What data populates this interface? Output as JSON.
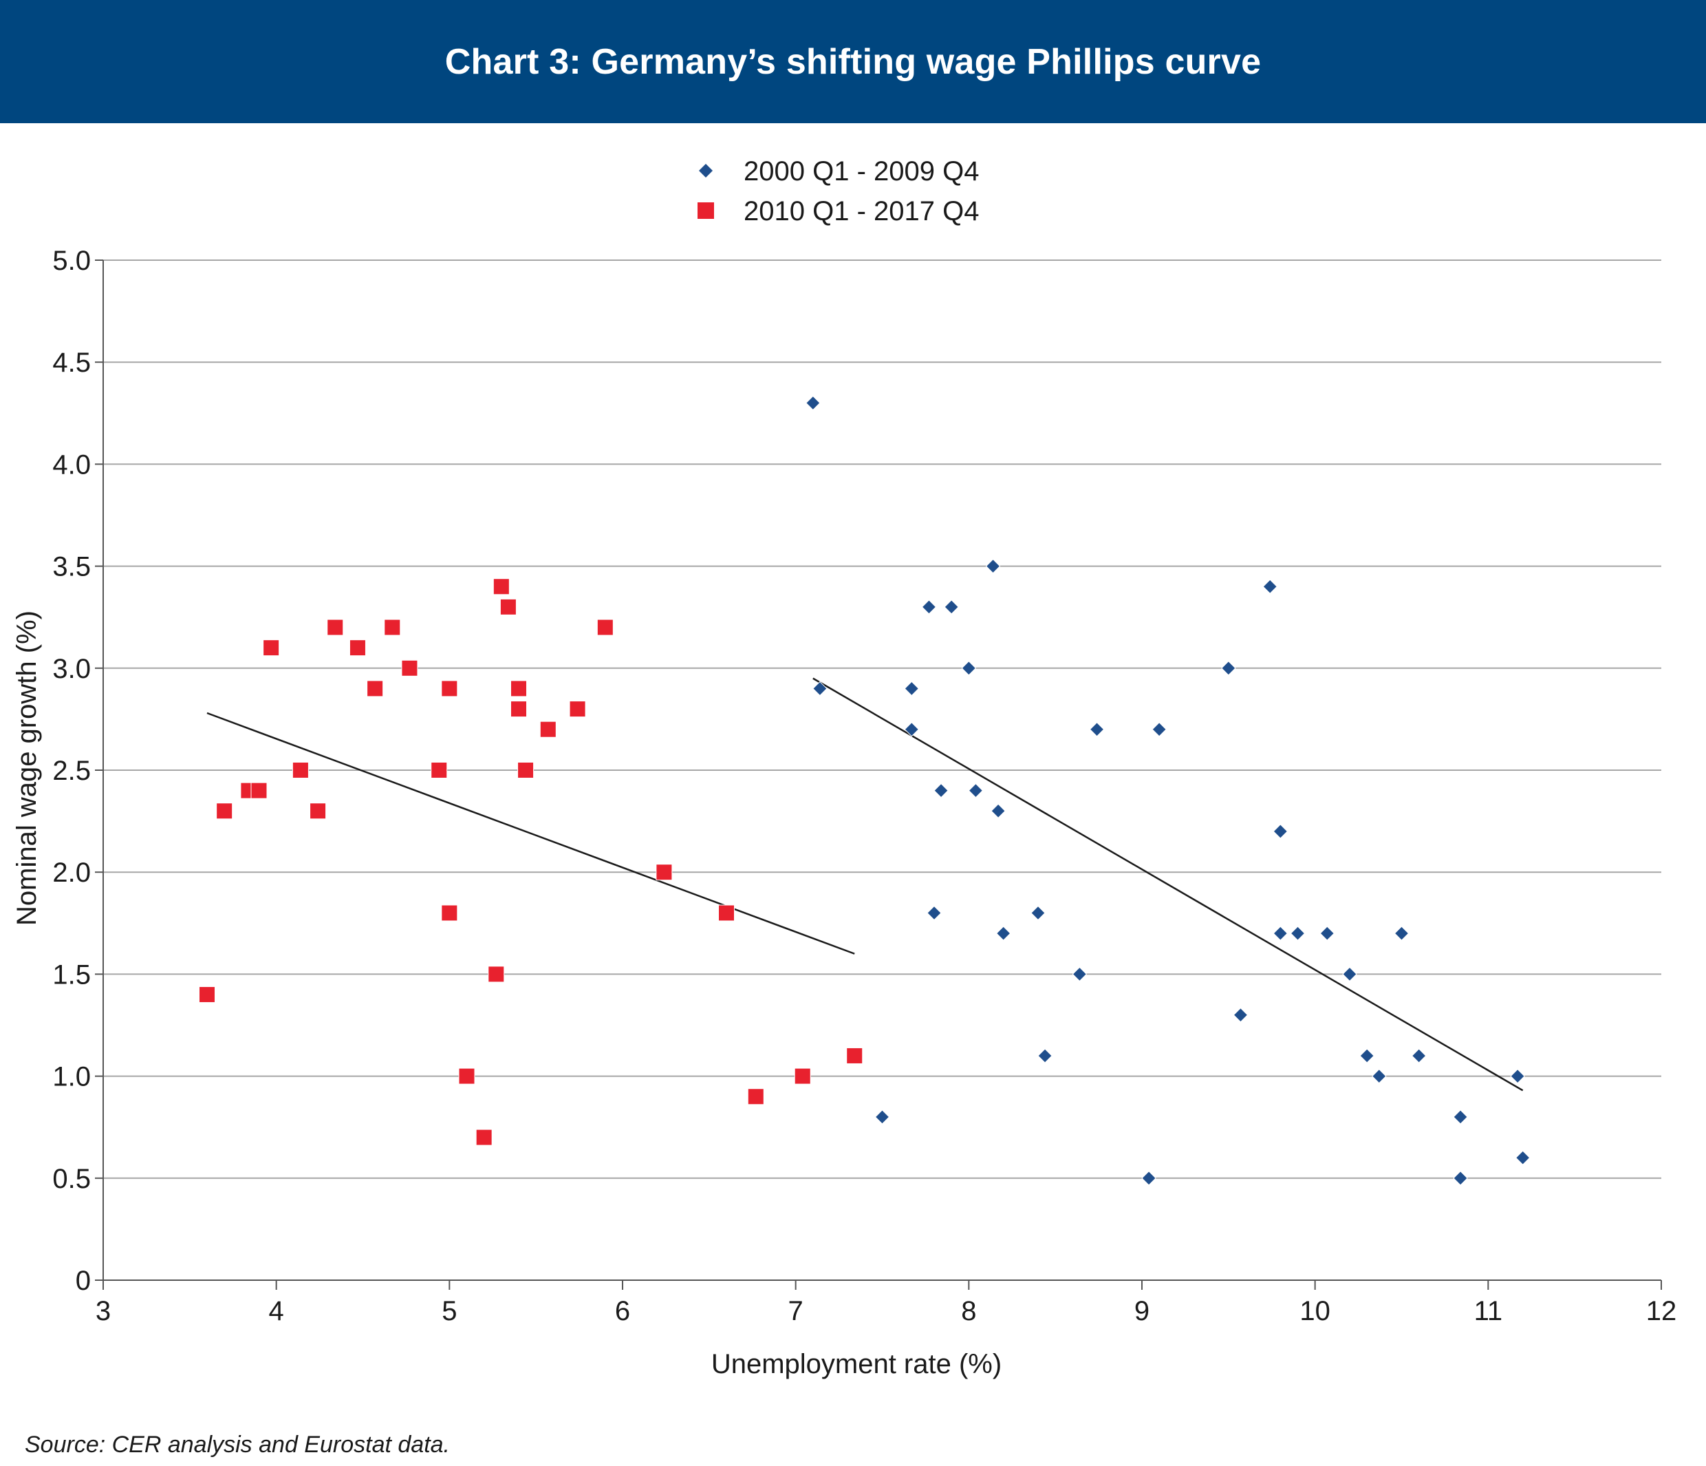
{
  "header": {
    "title": "Chart 3: Germany’s shifting wage Phillips curve"
  },
  "footer": {
    "source": "Source: CER analysis and Eurostat data."
  },
  "colors": {
    "header_bg": "#00467f",
    "series_2000": "#1f4e8c",
    "series_2010": "#e8212e",
    "gridline": "#a6a6a6",
    "trendline": "#1a1a1a"
  },
  "chart_data": {
    "type": "scatter",
    "title": "Chart 3: Germany’s shifting wage Phillips curve",
    "xlabel": "Unemployment rate (%)",
    "ylabel": "Nominal wage growth (%)",
    "xlim": [
      3,
      12
    ],
    "ylim": [
      0,
      5
    ],
    "x_ticks": [
      "3",
      "4",
      "5",
      "6",
      "7",
      "8",
      "9",
      "10",
      "11",
      "12"
    ],
    "y_ticks": [
      "0",
      "0.5",
      "1.0",
      "1.5",
      "2.0",
      "2.5",
      "3.0",
      "3.5",
      "4.0",
      "4.5",
      "5.0"
    ],
    "grid": "horizontal",
    "legend_position": "top-center",
    "series": [
      {
        "name": "2000 Q1 - 2009 Q4",
        "marker": "diamond",
        "points": [
          [
            7.1,
            4.3
          ],
          [
            7.14,
            2.9
          ],
          [
            7.5,
            0.8
          ],
          [
            7.67,
            2.9
          ],
          [
            7.67,
            2.7
          ],
          [
            7.77,
            3.3
          ],
          [
            7.8,
            1.8
          ],
          [
            7.84,
            2.4
          ],
          [
            7.9,
            3.3
          ],
          [
            8.0,
            3.0
          ],
          [
            8.04,
            2.4
          ],
          [
            8.14,
            3.5
          ],
          [
            8.17,
            2.3
          ],
          [
            8.2,
            1.7
          ],
          [
            8.4,
            1.8
          ],
          [
            8.44,
            1.1
          ],
          [
            8.64,
            1.5
          ],
          [
            8.74,
            2.7
          ],
          [
            9.04,
            0.5
          ],
          [
            9.1,
            2.7
          ],
          [
            9.5,
            3.0
          ],
          [
            9.57,
            1.3
          ],
          [
            9.74,
            3.4
          ],
          [
            9.8,
            2.2
          ],
          [
            9.8,
            1.7
          ],
          [
            9.9,
            1.7
          ],
          [
            10.07,
            1.7
          ],
          [
            10.2,
            1.5
          ],
          [
            10.3,
            1.1
          ],
          [
            10.37,
            1.0
          ],
          [
            10.5,
            1.7
          ],
          [
            10.6,
            1.1
          ],
          [
            10.84,
            0.8
          ],
          [
            10.84,
            0.5
          ],
          [
            11.17,
            1.0
          ],
          [
            11.2,
            0.6
          ]
        ],
        "trendline": [
          [
            7.1,
            2.95
          ],
          [
            11.2,
            0.93
          ]
        ]
      },
      {
        "name": "2010 Q1 - 2017 Q4",
        "marker": "square",
        "points": [
          [
            3.6,
            1.4
          ],
          [
            3.7,
            2.3
          ],
          [
            3.84,
            2.4
          ],
          [
            3.9,
            2.4
          ],
          [
            3.97,
            3.1
          ],
          [
            4.14,
            2.5
          ],
          [
            4.24,
            2.3
          ],
          [
            4.34,
            3.2
          ],
          [
            4.47,
            3.1
          ],
          [
            4.57,
            2.9
          ],
          [
            4.67,
            3.2
          ],
          [
            4.77,
            3.0
          ],
          [
            4.94,
            2.5
          ],
          [
            5.0,
            2.9
          ],
          [
            5.0,
            1.8
          ],
          [
            5.1,
            1.0
          ],
          [
            5.2,
            0.7
          ],
          [
            5.27,
            1.5
          ],
          [
            5.3,
            3.4
          ],
          [
            5.34,
            3.3
          ],
          [
            5.4,
            2.9
          ],
          [
            5.4,
            2.8
          ],
          [
            5.44,
            2.5
          ],
          [
            5.57,
            2.7
          ],
          [
            5.74,
            2.8
          ],
          [
            5.9,
            3.2
          ],
          [
            6.24,
            2.0
          ],
          [
            6.6,
            1.8
          ],
          [
            6.77,
            0.9
          ],
          [
            7.04,
            1.0
          ],
          [
            7.34,
            1.1
          ]
        ],
        "trendline": [
          [
            3.6,
            2.78
          ],
          [
            7.34,
            1.6
          ]
        ]
      }
    ]
  }
}
